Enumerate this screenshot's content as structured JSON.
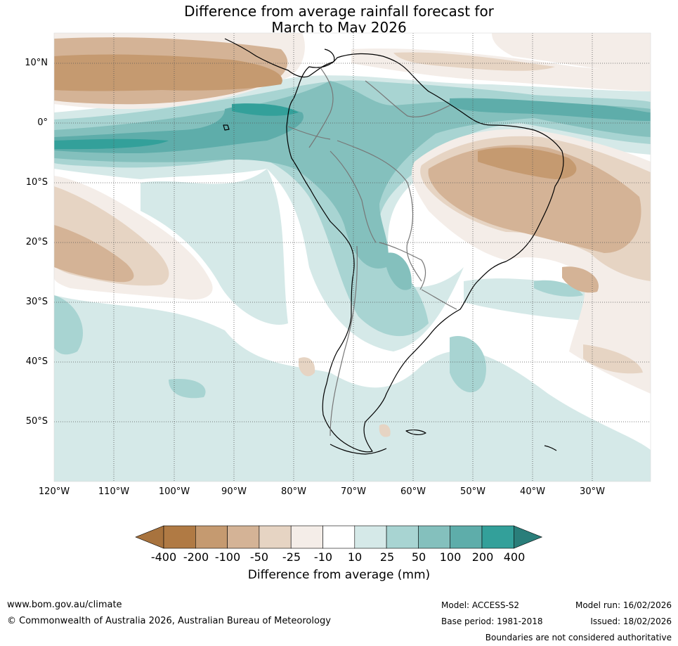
{
  "title_line1": "Difference from average rainfall forecast for",
  "title_line2": "March to May 2026",
  "latitude_labels": [
    "10°N",
    "0°",
    "10°S",
    "20°S",
    "30°S",
    "40°S",
    "50°S"
  ],
  "longitude_labels": [
    "120°W",
    "110°W",
    "100°W",
    "90°W",
    "80°W",
    "70°W",
    "60°W",
    "50°W",
    "40°W",
    "30°W"
  ],
  "colorbar": {
    "title": "Difference from average (mm)",
    "ticks": [
      "-400",
      "-200",
      "-100",
      "-50",
      "-25",
      "-10",
      "10",
      "25",
      "50",
      "100",
      "200",
      "400"
    ],
    "colors": [
      "#a8733e",
      "#b07a44",
      "#c59a70",
      "#d4b396",
      "#e6d4c3",
      "#f4ede8",
      "#ffffff",
      "#d5e9e8",
      "#a8d4d2",
      "#84c0bd",
      "#5eadaa",
      "#33a09a",
      "#2a7e7a"
    ]
  },
  "footer": {
    "website": "www.bom.gov.au/climate",
    "copyright": "© Commonwealth of Australia 2026, Australian Bureau of Meteorology",
    "model": "Model: ACCESS-S2",
    "base_period": "Base period: 1981-2018",
    "model_run": "Model run: 16/02/2026",
    "issued": "Issued: 18/02/2026",
    "disclaimer": "Boundaries are not considered authoritative"
  }
}
